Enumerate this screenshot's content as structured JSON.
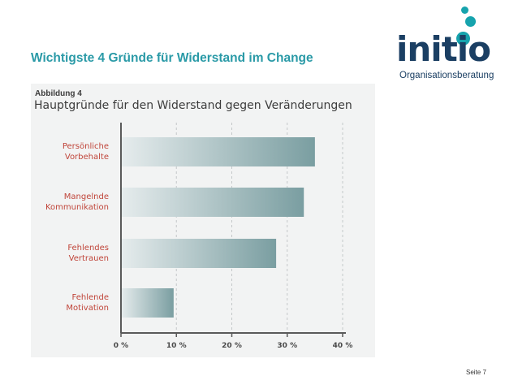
{
  "slide": {
    "title": "Wichtigste 4 Gründe für Widerstand im Change",
    "page_number": "Seite 7"
  },
  "logo": {
    "word": "initio",
    "subtitle": "Organisationsberatung",
    "primary_color": "#1b3f63",
    "accent_color": "#16a3ad"
  },
  "chart_data": {
    "type": "bar",
    "orientation": "horizontal",
    "figure_label": "Abbildung 4",
    "title": "Hauptgründe für den Widerstand gegen Veränderungen",
    "categories": [
      "Persönliche\nVorbehalte",
      "Mangelnde\nKommunikation",
      "Fehlendes\nVertrauen",
      "Fehlende\nMotivation"
    ],
    "values": [
      35,
      33,
      28,
      9.5
    ],
    "xlim": [
      0,
      40
    ],
    "xticks": [
      "0 %",
      "10 %",
      "20 %",
      "30 %",
      "40 %"
    ],
    "xtick_values": [
      0,
      10,
      20,
      30,
      40
    ],
    "grid": true,
    "category_label_color": "#c0453a",
    "bar_color_start": "#e6eced",
    "bar_color_end": "#7a9ea1"
  }
}
